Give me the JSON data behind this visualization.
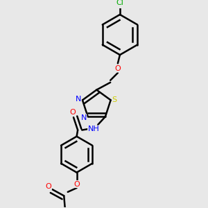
{
  "bg_color": "#e8e8e8",
  "bond_color": "#000000",
  "bond_width": 1.8,
  "atom_colors": {
    "C": "#000000",
    "H": "#5f9ea0",
    "N": "#0000ff",
    "O": "#ff0000",
    "S": "#cccc00",
    "Cl": "#00aa00"
  },
  "font_size": 8.0,
  "font_size_small": 7.0
}
